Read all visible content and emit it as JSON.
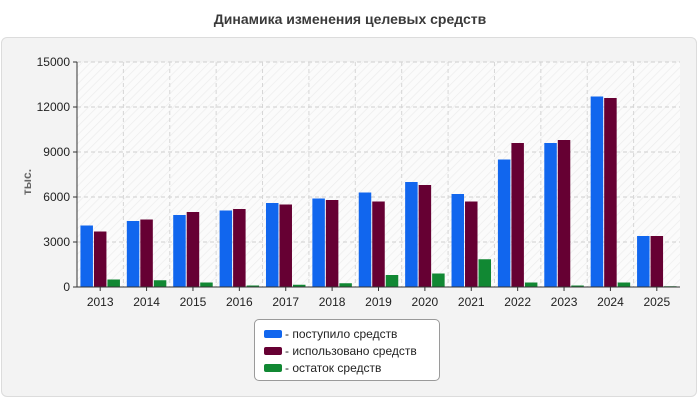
{
  "chart_data": {
    "type": "bar",
    "title": "Динамика изменения целевых средств",
    "ylabel": "тыс.",
    "xlabel": "",
    "ylim": [
      0,
      15000
    ],
    "yticks": [
      0,
      3000,
      6000,
      9000,
      12000,
      15000
    ],
    "categories": [
      "2013",
      "2014",
      "2015",
      "2016",
      "2017",
      "2018",
      "2019",
      "2020",
      "2021",
      "2022",
      "2023",
      "2024",
      "2025"
    ],
    "grid": true,
    "legend_position": "bottom-center",
    "series": [
      {
        "name": "- поступило средств",
        "color": "#1166ee",
        "values": [
          4100,
          4400,
          4800,
          5100,
          5600,
          5900,
          6300,
          7000,
          6200,
          8500,
          9600,
          12700,
          3400
        ]
      },
      {
        "name": "- использовано средств",
        "color": "#660033",
        "values": [
          3700,
          4500,
          5000,
          5200,
          5500,
          5800,
          5700,
          6800,
          5700,
          9600,
          9800,
          12600,
          3400
        ]
      },
      {
        "name": "- остаток средств",
        "color": "#118833",
        "values": [
          500,
          450,
          300,
          100,
          150,
          250,
          800,
          900,
          1850,
          300,
          100,
          300,
          50
        ]
      }
    ]
  }
}
